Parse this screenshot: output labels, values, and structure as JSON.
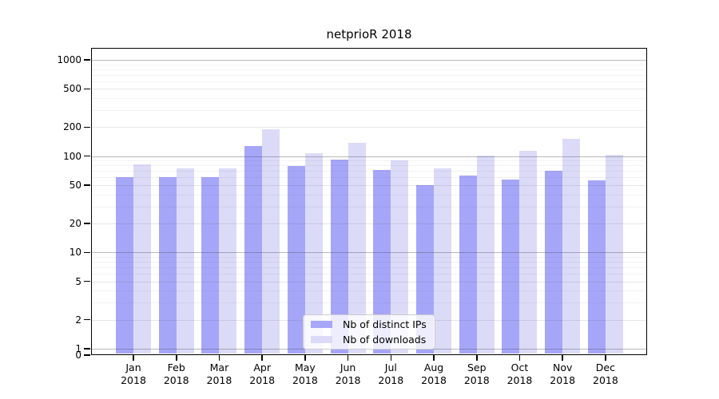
{
  "chart_data": {
    "type": "bar",
    "title": "netprioR 2018",
    "categories": [
      "Jan",
      "Feb",
      "Mar",
      "Apr",
      "May",
      "Jun",
      "Jul",
      "Aug",
      "Sep",
      "Oct",
      "Nov",
      "Dec"
    ],
    "year_label": "2018",
    "series": [
      {
        "name": "Nb of distinct IPs",
        "color": "#a7a7f9",
        "color_rgba": "rgba(85,85,243,0.52)",
        "values": [
          60,
          60,
          61,
          128,
          79,
          92,
          72,
          50,
          63,
          57,
          71,
          56
        ]
      },
      {
        "name": "Nb of downloads",
        "color": "#dbdbf8",
        "color_rgba": "rgba(184,184,242,0.5)",
        "values": [
          82,
          75,
          75,
          190,
          108,
          138,
          90,
          74,
          102,
          113,
          150,
          104
        ]
      }
    ],
    "y_axis": {
      "scale": "symlog",
      "tick_values": [
        0,
        1,
        2,
        5,
        10,
        20,
        50,
        100,
        200,
        500,
        1000
      ],
      "tick_labels": [
        "0",
        "1",
        "2",
        "5",
        "10",
        "20",
        "50",
        "100",
        "200",
        "500",
        "1000"
      ],
      "ylim": [
        0,
        1330
      ],
      "grid": true
    },
    "legend": {
      "position": "lower-center",
      "labels": [
        "Nb of distinct IPs",
        "Nb of downloads"
      ]
    }
  }
}
